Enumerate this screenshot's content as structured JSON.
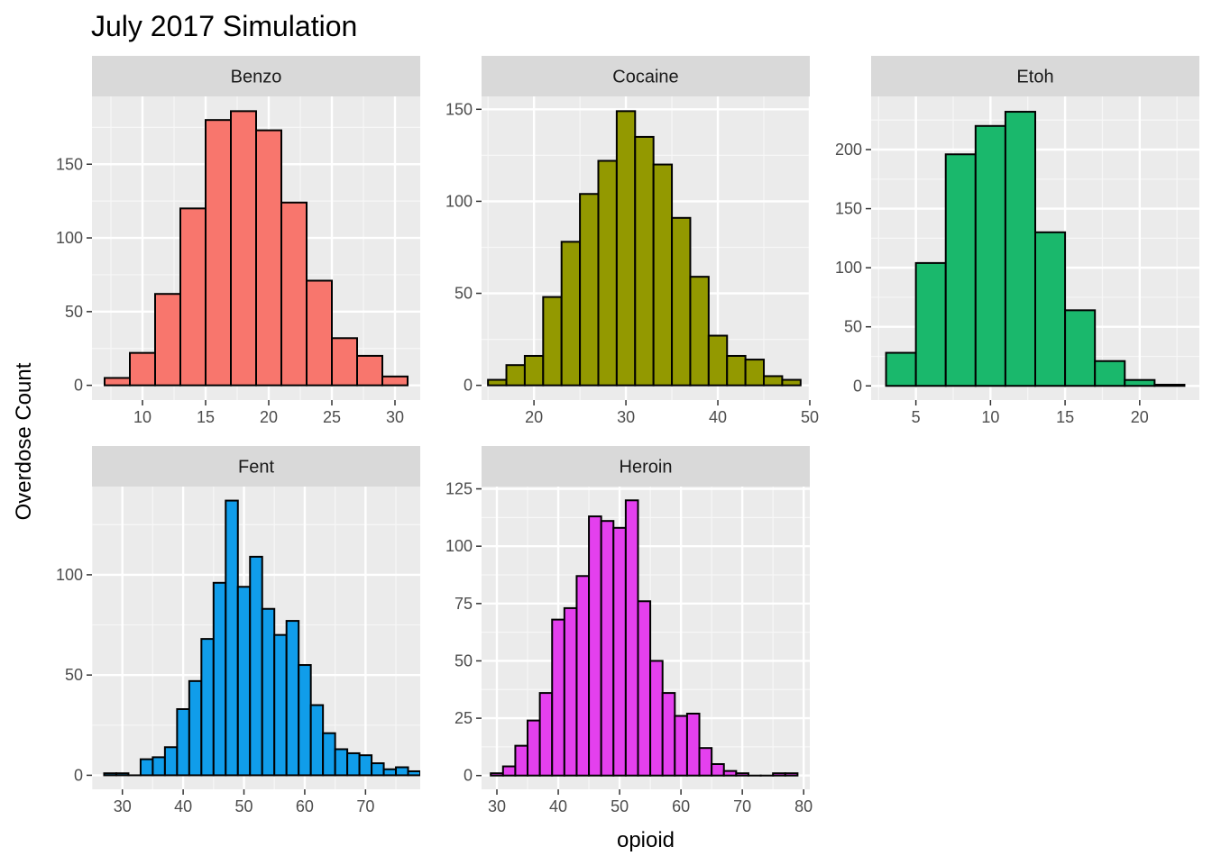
{
  "chart_data": {
    "type": "bar",
    "title": "July 2017 Simulation",
    "xlabel": "opioid",
    "ylabel": "Overdose Count",
    "grid": true,
    "legend": "none",
    "panels": [
      {
        "name": "Benzo",
        "color": "#F8766D",
        "xlim": [
          6,
          32
        ],
        "ylim": [
          -10,
          196
        ],
        "xbreaks": [
          10,
          15,
          20,
          25,
          30
        ],
        "ybreaks": [
          0,
          50,
          100,
          150
        ],
        "bins": [
          {
            "x0": 7,
            "x1": 9,
            "count": 5
          },
          {
            "x0": 9,
            "x1": 11,
            "count": 22
          },
          {
            "x0": 11,
            "x1": 13,
            "count": 62
          },
          {
            "x0": 13,
            "x1": 15,
            "count": 120
          },
          {
            "x0": 15,
            "x1": 17,
            "count": 180
          },
          {
            "x0": 17,
            "x1": 19,
            "count": 186
          },
          {
            "x0": 19,
            "x1": 21,
            "count": 173
          },
          {
            "x0": 21,
            "x1": 23,
            "count": 124
          },
          {
            "x0": 23,
            "x1": 25,
            "count": 71
          },
          {
            "x0": 25,
            "x1": 27,
            "count": 32
          },
          {
            "x0": 27,
            "x1": 29,
            "count": 20
          },
          {
            "x0": 29,
            "x1": 31,
            "count": 6
          }
        ]
      },
      {
        "name": "Cocaine",
        "color": "#939900",
        "xlim": [
          14.3,
          50
        ],
        "ylim": [
          -8,
          157
        ],
        "xbreaks": [
          20,
          30,
          40,
          50
        ],
        "ybreaks": [
          0,
          50,
          100,
          150
        ],
        "bins": [
          {
            "x0": 15,
            "x1": 17,
            "count": 3
          },
          {
            "x0": 17,
            "x1": 19,
            "count": 11
          },
          {
            "x0": 19,
            "x1": 21,
            "count": 16
          },
          {
            "x0": 21,
            "x1": 23,
            "count": 48
          },
          {
            "x0": 23,
            "x1": 25,
            "count": 78
          },
          {
            "x0": 25,
            "x1": 27,
            "count": 104
          },
          {
            "x0": 27,
            "x1": 29,
            "count": 122
          },
          {
            "x0": 29,
            "x1": 31,
            "count": 149
          },
          {
            "x0": 31,
            "x1": 33,
            "count": 135
          },
          {
            "x0": 33,
            "x1": 35,
            "count": 120
          },
          {
            "x0": 35,
            "x1": 37,
            "count": 91
          },
          {
            "x0": 37,
            "x1": 39,
            "count": 59
          },
          {
            "x0": 39,
            "x1": 41,
            "count": 27
          },
          {
            "x0": 41,
            "x1": 43,
            "count": 16
          },
          {
            "x0": 43,
            "x1": 45,
            "count": 14
          },
          {
            "x0": 45,
            "x1": 47,
            "count": 5
          },
          {
            "x0": 47,
            "x1": 49,
            "count": 3
          }
        ]
      },
      {
        "name": "Etoh",
        "color": "#1AB86C",
        "xlim": [
          2,
          24
        ],
        "ylim": [
          -12,
          245
        ],
        "xbreaks": [
          5,
          10,
          15,
          20
        ],
        "ybreaks": [
          0,
          50,
          100,
          150,
          200
        ],
        "bins": [
          {
            "x0": 3,
            "x1": 5,
            "count": 28
          },
          {
            "x0": 5,
            "x1": 7,
            "count": 104
          },
          {
            "x0": 7,
            "x1": 9,
            "count": 196
          },
          {
            "x0": 9,
            "x1": 11,
            "count": 220
          },
          {
            "x0": 11,
            "x1": 13,
            "count": 232
          },
          {
            "x0": 13,
            "x1": 15,
            "count": 130
          },
          {
            "x0": 15,
            "x1": 17,
            "count": 64
          },
          {
            "x0": 17,
            "x1": 19,
            "count": 21
          },
          {
            "x0": 19,
            "x1": 21,
            "count": 5
          },
          {
            "x0": 21,
            "x1": 23,
            "count": 1
          }
        ]
      },
      {
        "name": "Fent",
        "color": "#109DEA",
        "xlim": [
          25,
          79
        ],
        "ylim": [
          -7,
          144
        ],
        "xbreaks": [
          30,
          40,
          50,
          60,
          70
        ],
        "ybreaks": [
          0,
          50,
          100
        ],
        "bins": [
          {
            "x0": 27,
            "x1": 29,
            "count": 1
          },
          {
            "x0": 29,
            "x1": 31,
            "count": 1
          },
          {
            "x0": 31,
            "x1": 33,
            "count": 0
          },
          {
            "x0": 33,
            "x1": 35,
            "count": 8
          },
          {
            "x0": 35,
            "x1": 37,
            "count": 9
          },
          {
            "x0": 37,
            "x1": 39,
            "count": 14
          },
          {
            "x0": 39,
            "x1": 41,
            "count": 33
          },
          {
            "x0": 41,
            "x1": 43,
            "count": 47
          },
          {
            "x0": 43,
            "x1": 45,
            "count": 68
          },
          {
            "x0": 45,
            "x1": 47,
            "count": 96
          },
          {
            "x0": 47,
            "x1": 49,
            "count": 137
          },
          {
            "x0": 49,
            "x1": 51,
            "count": 94
          },
          {
            "x0": 51,
            "x1": 53,
            "count": 109
          },
          {
            "x0": 53,
            "x1": 55,
            "count": 83
          },
          {
            "x0": 55,
            "x1": 57,
            "count": 70
          },
          {
            "x0": 57,
            "x1": 59,
            "count": 77
          },
          {
            "x0": 59,
            "x1": 61,
            "count": 55
          },
          {
            "x0": 61,
            "x1": 63,
            "count": 35
          },
          {
            "x0": 63,
            "x1": 65,
            "count": 21
          },
          {
            "x0": 65,
            "x1": 67,
            "count": 13
          },
          {
            "x0": 67,
            "x1": 69,
            "count": 11
          },
          {
            "x0": 69,
            "x1": 71,
            "count": 10
          },
          {
            "x0": 71,
            "x1": 73,
            "count": 6
          },
          {
            "x0": 73,
            "x1": 75,
            "count": 3
          },
          {
            "x0": 75,
            "x1": 77,
            "count": 4
          },
          {
            "x0": 77,
            "x1": 79,
            "count": 2
          }
        ]
      },
      {
        "name": "Heroin",
        "color": "#E440EE",
        "xlim": [
          27.5,
          81
        ],
        "ylim": [
          -6,
          126
        ],
        "xbreaks": [
          30,
          40,
          50,
          60,
          70,
          80
        ],
        "ybreaks": [
          0,
          25,
          50,
          75,
          100,
          125
        ],
        "bins": [
          {
            "x0": 29,
            "x1": 31,
            "count": 1
          },
          {
            "x0": 31,
            "x1": 33,
            "count": 4
          },
          {
            "x0": 33,
            "x1": 35,
            "count": 13
          },
          {
            "x0": 35,
            "x1": 37,
            "count": 24
          },
          {
            "x0": 37,
            "x1": 39,
            "count": 36
          },
          {
            "x0": 39,
            "x1": 41,
            "count": 68
          },
          {
            "x0": 41,
            "x1": 43,
            "count": 73
          },
          {
            "x0": 43,
            "x1": 45,
            "count": 87
          },
          {
            "x0": 45,
            "x1": 47,
            "count": 113
          },
          {
            "x0": 47,
            "x1": 49,
            "count": 111
          },
          {
            "x0": 49,
            "x1": 51,
            "count": 108
          },
          {
            "x0": 51,
            "x1": 53,
            "count": 120
          },
          {
            "x0": 53,
            "x1": 55,
            "count": 76
          },
          {
            "x0": 55,
            "x1": 57,
            "count": 50
          },
          {
            "x0": 57,
            "x1": 59,
            "count": 36
          },
          {
            "x0": 59,
            "x1": 61,
            "count": 26
          },
          {
            "x0": 61,
            "x1": 63,
            "count": 27
          },
          {
            "x0": 63,
            "x1": 65,
            "count": 12
          },
          {
            "x0": 65,
            "x1": 67,
            "count": 5
          },
          {
            "x0": 67,
            "x1": 69,
            "count": 2
          },
          {
            "x0": 69,
            "x1": 71,
            "count": 1
          },
          {
            "x0": 71,
            "x1": 73,
            "count": 0
          },
          {
            "x0": 73,
            "x1": 75,
            "count": 0
          },
          {
            "x0": 75,
            "x1": 77,
            "count": 1
          },
          {
            "x0": 77,
            "x1": 79,
            "count": 1
          }
        ]
      }
    ]
  }
}
